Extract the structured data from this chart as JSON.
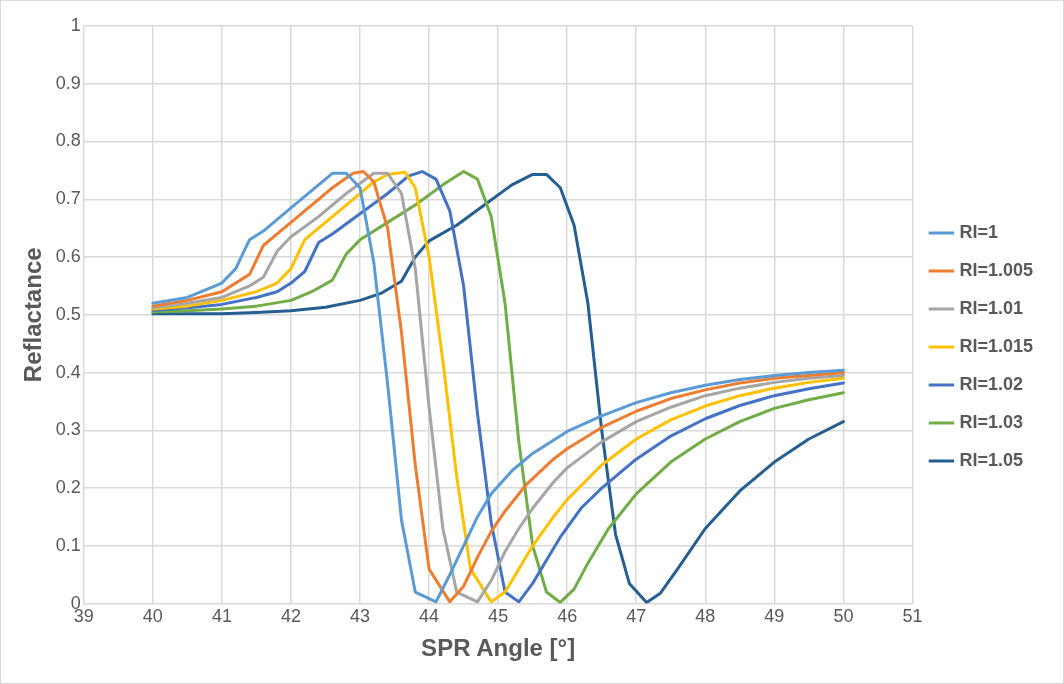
{
  "chart_data": {
    "type": "line",
    "xlabel": "SPR Angle [°]",
    "ylabel": "Reflactance",
    "xlim": [
      39,
      51
    ],
    "xticks": [
      39,
      40,
      41,
      42,
      43,
      44,
      45,
      46,
      47,
      48,
      49,
      50,
      51
    ],
    "ylim": [
      0,
      1
    ],
    "yticks": [
      0,
      0.1,
      0.2,
      0.3,
      0.4,
      0.5,
      0.6,
      0.7,
      0.8,
      0.9,
      1
    ],
    "grid": true,
    "legend": "right",
    "marker": "none",
    "line_style": "solid",
    "series": [
      {
        "name": "RI=1",
        "color": "#5b9bd5",
        "x": [
          40,
          40.5,
          41,
          41.2,
          41.4,
          41.6,
          42,
          42.4,
          42.6,
          42.8,
          43,
          43.2,
          43.4,
          43.6,
          43.8,
          44.1,
          44.3,
          44.5,
          44.7,
          44.9,
          45.2,
          45.5,
          46,
          46.5,
          47,
          47.5,
          48,
          48.5,
          49,
          49.5,
          50
        ],
        "values": [
          0.52,
          0.53,
          0.555,
          0.58,
          0.63,
          0.645,
          0.685,
          0.725,
          0.745,
          0.745,
          0.72,
          0.59,
          0.38,
          0.145,
          0.02,
          0.003,
          0.05,
          0.1,
          0.15,
          0.19,
          0.23,
          0.26,
          0.298,
          0.325,
          0.348,
          0.365,
          0.378,
          0.388,
          0.395,
          0.4,
          0.404
        ]
      },
      {
        "name": "RI=1.005",
        "color": "#ed7d31",
        "x": [
          40,
          40.5,
          41,
          41.4,
          41.6,
          41.8,
          42.2,
          42.6,
          42.9,
          43.05,
          43.2,
          43.4,
          43.6,
          43.8,
          44,
          44.3,
          44.5,
          44.7,
          44.9,
          45.1,
          45.4,
          45.8,
          46,
          46.5,
          47,
          47.5,
          48,
          48.5,
          49,
          49.5,
          50
        ],
        "values": [
          0.515,
          0.525,
          0.54,
          0.57,
          0.62,
          0.64,
          0.68,
          0.72,
          0.745,
          0.748,
          0.73,
          0.65,
          0.47,
          0.24,
          0.06,
          0.003,
          0.03,
          0.08,
          0.125,
          0.16,
          0.205,
          0.25,
          0.268,
          0.305,
          0.333,
          0.355,
          0.37,
          0.382,
          0.39,
          0.395,
          0.4
        ]
      },
      {
        "name": "RI=1.01",
        "color": "#a5a5a5",
        "x": [
          40,
          40.5,
          41,
          41.4,
          41.6,
          41.8,
          42,
          42.4,
          42.8,
          43.2,
          43.4,
          43.6,
          43.8,
          44,
          44.2,
          44.4,
          44.7,
          44.9,
          45.1,
          45.3,
          45.5,
          45.8,
          46,
          46.5,
          47,
          47.5,
          48,
          48.5,
          49,
          49.5,
          50
        ],
        "values": [
          0.512,
          0.52,
          0.53,
          0.55,
          0.565,
          0.61,
          0.635,
          0.67,
          0.71,
          0.745,
          0.745,
          0.71,
          0.58,
          0.34,
          0.13,
          0.02,
          0.003,
          0.04,
          0.09,
          0.13,
          0.165,
          0.21,
          0.235,
          0.28,
          0.315,
          0.34,
          0.36,
          0.373,
          0.383,
          0.39,
          0.395
        ]
      },
      {
        "name": "RI=1.015",
        "color": "#ffc000",
        "x": [
          40,
          40.5,
          41,
          41.5,
          41.8,
          42,
          42.2,
          42.4,
          42.8,
          43.2,
          43.4,
          43.65,
          43.8,
          44,
          44.2,
          44.4,
          44.6,
          44.9,
          45.1,
          45.3,
          45.5,
          45.8,
          46,
          46.5,
          47,
          47.5,
          48,
          48.5,
          49,
          49.5,
          50
        ],
        "values": [
          0.51,
          0.515,
          0.525,
          0.54,
          0.555,
          0.58,
          0.63,
          0.65,
          0.69,
          0.73,
          0.743,
          0.747,
          0.72,
          0.6,
          0.42,
          0.22,
          0.06,
          0.003,
          0.02,
          0.06,
          0.1,
          0.15,
          0.18,
          0.24,
          0.285,
          0.318,
          0.342,
          0.36,
          0.373,
          0.383,
          0.39
        ]
      },
      {
        "name": "RI=1.02",
        "color": "#4472c4",
        "x": [
          40,
          40.5,
          41,
          41.5,
          41.8,
          42,
          42.2,
          42.4,
          42.6,
          43,
          43.4,
          43.7,
          43.9,
          44.1,
          44.3,
          44.5,
          44.7,
          44.9,
          45.1,
          45.3,
          45.5,
          45.7,
          45.9,
          46.2,
          46.5,
          47,
          47.5,
          48,
          48.5,
          49,
          49.5,
          50
        ],
        "values": [
          0.508,
          0.512,
          0.518,
          0.53,
          0.54,
          0.555,
          0.575,
          0.625,
          0.64,
          0.675,
          0.71,
          0.74,
          0.748,
          0.735,
          0.68,
          0.55,
          0.33,
          0.14,
          0.02,
          0.003,
          0.035,
          0.075,
          0.115,
          0.165,
          0.2,
          0.25,
          0.29,
          0.32,
          0.343,
          0.36,
          0.372,
          0.382
        ]
      },
      {
        "name": "RI=1.03",
        "color": "#70ad47",
        "x": [
          40,
          40.5,
          41,
          41.5,
          42,
          42.3,
          42.6,
          42.8,
          43,
          43.4,
          43.8,
          44.2,
          44.5,
          44.7,
          44.9,
          45.1,
          45.3,
          45.5,
          45.7,
          45.9,
          46.1,
          46.3,
          46.6,
          47,
          47.5,
          48,
          48.5,
          49,
          49.5,
          50
        ],
        "values": [
          0.505,
          0.507,
          0.51,
          0.515,
          0.525,
          0.54,
          0.56,
          0.605,
          0.63,
          0.66,
          0.69,
          0.725,
          0.748,
          0.735,
          0.67,
          0.52,
          0.28,
          0.1,
          0.02,
          0.002,
          0.025,
          0.07,
          0.13,
          0.19,
          0.245,
          0.285,
          0.315,
          0.338,
          0.353,
          0.365
        ]
      },
      {
        "name": "RI=1.05",
        "color": "#255e91",
        "x": [
          40,
          41,
          41.5,
          42,
          42.5,
          43,
          43.3,
          43.6,
          43.8,
          44,
          44.4,
          44.8,
          45.2,
          45.5,
          45.7,
          45.9,
          46.1,
          46.3,
          46.5,
          46.7,
          46.9,
          47.15,
          47.35,
          47.6,
          48,
          48.5,
          49,
          49.5,
          50
        ],
        "values": [
          0.502,
          0.502,
          0.504,
          0.507,
          0.513,
          0.525,
          0.537,
          0.558,
          0.6,
          0.628,
          0.655,
          0.69,
          0.725,
          0.743,
          0.743,
          0.72,
          0.655,
          0.52,
          0.3,
          0.12,
          0.035,
          0.002,
          0.018,
          0.06,
          0.13,
          0.195,
          0.245,
          0.285,
          0.315
        ]
      }
    ]
  }
}
